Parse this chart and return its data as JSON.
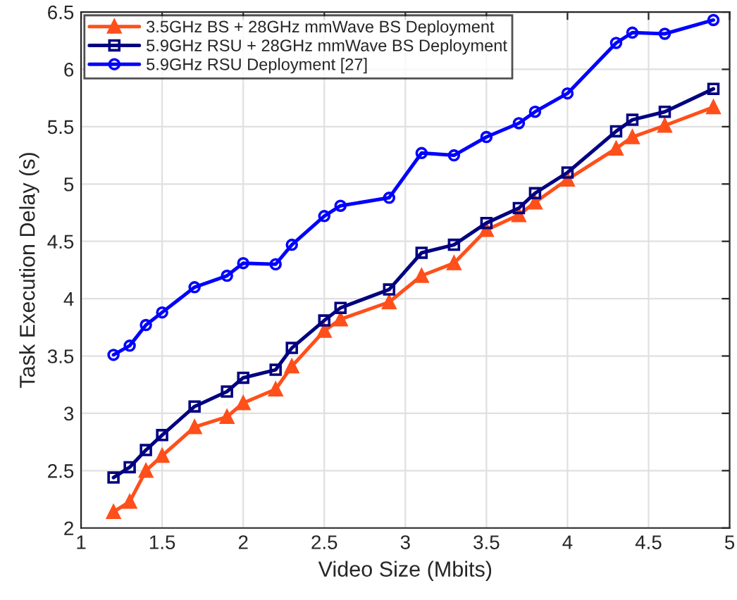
{
  "chart_data": {
    "type": "line",
    "xlabel": "Video Size (Mbits)",
    "ylabel": "Task Execution Delay (s)",
    "x": [
      1.2,
      1.3,
      1.4,
      1.5,
      1.7,
      1.9,
      2.0,
      2.2,
      2.3,
      2.5,
      2.6,
      2.9,
      3.1,
      3.3,
      3.5,
      3.7,
      3.8,
      4.0,
      4.3,
      4.4,
      4.6,
      4.9
    ],
    "series": [
      {
        "name": "3.5GHz BS + 28GHz mmWave BS Deployment",
        "color": "#ff4f1a",
        "marker": "triangle",
        "values": [
          2.14,
          2.23,
          2.5,
          2.63,
          2.88,
          2.97,
          3.09,
          3.21,
          3.41,
          3.72,
          3.82,
          3.97,
          4.2,
          4.31,
          4.6,
          4.73,
          4.84,
          5.04,
          5.31,
          5.41,
          5.51,
          5.67
        ]
      },
      {
        "name": "5.9GHz RSU + 28GHz mmWave BS Deployment",
        "color": "#000080",
        "marker": "square",
        "values": [
          2.44,
          2.53,
          2.68,
          2.81,
          3.06,
          3.19,
          3.31,
          3.38,
          3.57,
          3.81,
          3.92,
          4.08,
          4.4,
          4.47,
          4.66,
          4.79,
          4.92,
          5.1,
          5.46,
          5.56,
          5.63,
          5.83
        ]
      },
      {
        "name": "5.9GHz RSU Deployment [27]",
        "color": "#0000ff",
        "marker": "circle",
        "values": [
          3.51,
          3.59,
          3.77,
          3.88,
          4.1,
          4.2,
          4.31,
          4.3,
          4.47,
          4.72,
          4.81,
          4.88,
          5.27,
          5.25,
          5.41,
          5.53,
          5.63,
          5.79,
          6.23,
          6.32,
          6.31,
          6.43
        ]
      }
    ],
    "xlim": [
      1,
      5
    ],
    "xticks": [
      1,
      1.5,
      2,
      2.5,
      3,
      3.5,
      4,
      4.5,
      5
    ],
    "ylim": [
      2,
      6.5
    ],
    "yticks": [
      2,
      2.5,
      3,
      3.5,
      4,
      4.5,
      5,
      5.5,
      6,
      6.5
    ],
    "grid": true,
    "legend": "top left",
    "line_style": "solid"
  }
}
